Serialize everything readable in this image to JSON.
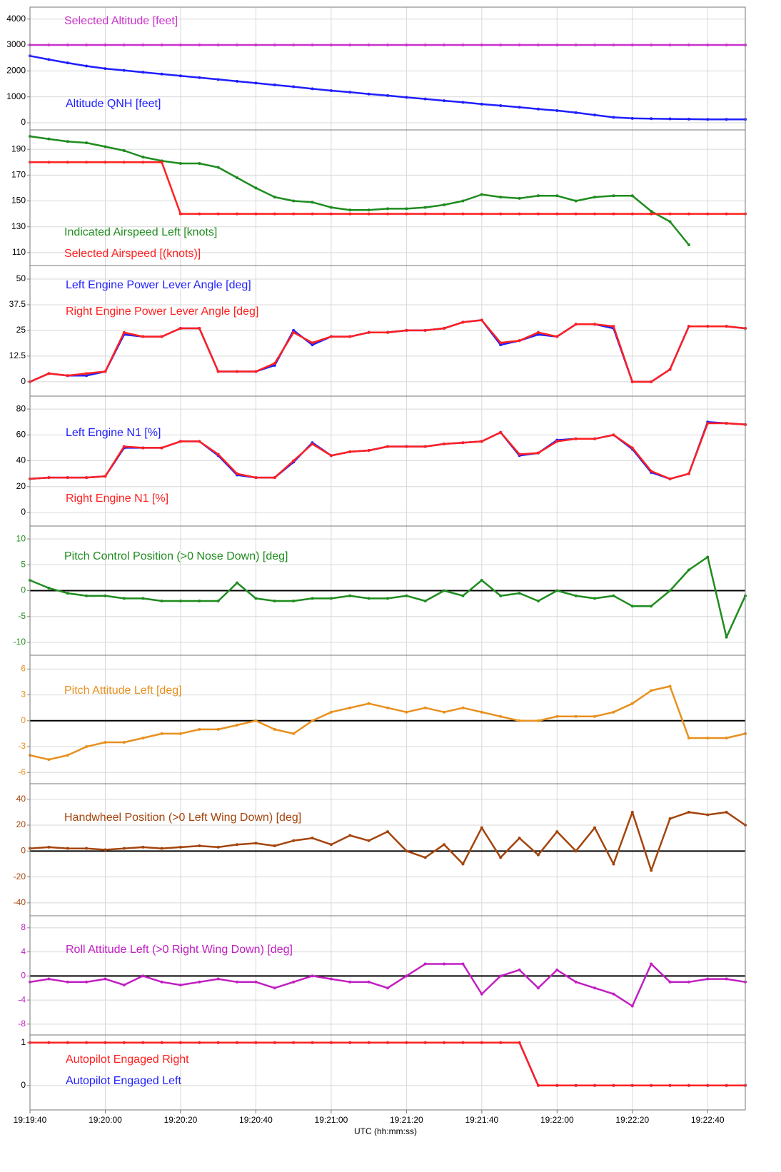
{
  "x_label": "UTC (hh:mm:ss)",
  "xlim": [
    "19:19:40",
    "19:22:50"
  ],
  "xticks": [
    "19:19:40",
    "19:20:00",
    "19:20:20",
    "19:20:40",
    "19:21:00",
    "19:21:20",
    "19:21:40",
    "19:22:00",
    "19:22:20",
    "19:22:40"
  ],
  "x": [
    "19:19:40",
    "19:19:45",
    "19:19:50",
    "19:19:55",
    "19:20:00",
    "19:20:05",
    "19:20:10",
    "19:20:15",
    "19:20:20",
    "19:20:25",
    "19:20:30",
    "19:20:35",
    "19:20:40",
    "19:20:45",
    "19:20:50",
    "19:20:55",
    "19:21:00",
    "19:21:05",
    "19:21:10",
    "19:21:15",
    "19:21:20",
    "19:21:25",
    "19:21:30",
    "19:21:35",
    "19:21:40",
    "19:21:45",
    "19:21:50",
    "19:21:55",
    "19:22:00",
    "19:22:05",
    "19:22:10",
    "19:22:15",
    "19:22:20",
    "19:22:25",
    "19:22:30",
    "19:22:35",
    "19:22:40",
    "19:22:45",
    "19:22:50"
  ],
  "chart_data": [
    {
      "type": "line",
      "ylim": [
        -275,
        4460
      ],
      "yticks": [
        0,
        1000,
        2000,
        3000,
        4000
      ],
      "tick_color": "#000000",
      "grid": true,
      "zero_line": false,
      "series": [
        {
          "name": "Selected Altitude [feet]",
          "color": "#cc33cc",
          "values": [
            3000,
            3000,
            3000,
            3000,
            3000,
            3000,
            3000,
            3000,
            3000,
            3000,
            3000,
            3000,
            3000,
            3000,
            3000,
            3000,
            3000,
            3000,
            3000,
            3000,
            3000,
            3000,
            3000,
            3000,
            3000,
            3000,
            3000,
            3000,
            3000,
            3000,
            3000,
            3000,
            3000,
            3000,
            3000,
            3000,
            3000,
            3000,
            3000
          ]
        },
        {
          "name": "Altitude QNH [feet]",
          "color": "#1f1fff",
          "values": [
            2580,
            2440,
            2310,
            2190,
            2090,
            2020,
            1950,
            1880,
            1810,
            1740,
            1670,
            1600,
            1530,
            1460,
            1390,
            1310,
            1240,
            1180,
            1110,
            1050,
            980,
            920,
            850,
            790,
            720,
            660,
            600,
            530,
            470,
            390,
            300,
            210,
            170,
            160,
            150,
            140,
            130,
            130,
            130
          ]
        }
      ]
    },
    {
      "type": "line",
      "ylim": [
        100,
        205
      ],
      "yticks": [
        110,
        130,
        150,
        170,
        190
      ],
      "tick_color": "#000000",
      "grid": true,
      "zero_line": false,
      "series": [
        {
          "name": "Indicated Airspeed Left [knots]",
          "color": "#1e8c1e",
          "values": [
            200,
            198,
            196,
            195,
            192,
            189,
            184,
            181,
            179,
            179,
            176,
            168,
            160,
            153,
            150,
            149,
            145,
            143,
            143,
            144,
            144,
            145,
            147,
            150,
            155,
            153,
            152,
            154,
            154,
            150,
            153,
            154,
            154,
            142,
            134,
            116,
            null,
            null,
            null
          ]
        },
        {
          "name": "Selected Airspeed [(knots)]",
          "color": "#ff2020",
          "values": [
            180,
            180,
            180,
            180,
            180,
            180,
            180,
            180,
            140,
            140,
            140,
            140,
            140,
            140,
            140,
            140,
            140,
            140,
            140,
            140,
            140,
            140,
            140,
            140,
            140,
            140,
            140,
            140,
            140,
            140,
            140,
            140,
            140,
            140,
            140,
            140,
            140,
            140,
            140
          ]
        }
      ]
    },
    {
      "type": "line",
      "ylim": [
        -7,
        56.6
      ],
      "yticks": [
        0,
        12.5,
        25,
        37.5,
        50
      ],
      "tick_color": "#000000",
      "grid": true,
      "zero_line": false,
      "series": [
        {
          "name": "Left Engine Power Lever Angle [deg]",
          "color": "#1f1fff",
          "values": [
            0,
            4,
            3,
            3,
            5,
            23,
            22,
            22,
            26,
            26,
            5,
            5,
            5,
            8,
            25,
            18,
            22,
            22,
            24,
            24,
            25,
            25,
            26,
            29,
            30,
            18,
            20,
            23,
            22,
            28,
            28,
            26,
            0,
            0,
            6,
            27,
            27,
            27,
            26
          ]
        },
        {
          "name": "Right Engine Power Lever Angle  [deg]",
          "color": "#ff2020",
          "values": [
            0,
            4,
            3,
            4,
            5,
            24,
            22,
            22,
            26,
            26,
            5,
            5,
            5,
            9,
            24,
            19,
            22,
            22,
            24,
            24,
            25,
            25,
            26,
            29,
            30,
            19,
            20,
            24,
            22,
            28,
            28,
            27,
            0,
            0,
            6,
            27,
            27,
            27,
            26
          ]
        }
      ]
    },
    {
      "type": "line",
      "ylim": [
        -10.5,
        90
      ],
      "yticks": [
        0,
        20,
        40,
        60,
        80
      ],
      "tick_color": "#000000",
      "grid": true,
      "zero_line": false,
      "series": [
        {
          "name": "Left Engine N1 [%]",
          "color": "#1f1fff",
          "values": [
            26,
            27,
            27,
            27,
            28,
            50,
            50,
            50,
            55,
            55,
            44,
            29,
            27,
            27,
            39,
            54,
            44,
            47,
            48,
            51,
            51,
            51,
            53,
            54,
            55,
            62,
            44,
            46,
            56,
            57,
            57,
            60,
            49,
            31,
            26,
            30,
            70,
            69,
            68
          ]
        },
        {
          "name": "Right Engine N1 [%]",
          "color": "#ff2020",
          "values": [
            26,
            27,
            27,
            27,
            28,
            51,
            50,
            50,
            55,
            55,
            45,
            30,
            27,
            27,
            40,
            53,
            44,
            47,
            48,
            51,
            51,
            51,
            53,
            54,
            55,
            62,
            45,
            46,
            55,
            57,
            57,
            60,
            50,
            32,
            26,
            30,
            69,
            69,
            68
          ]
        }
      ]
    },
    {
      "type": "line",
      "ylim": [
        -12.5,
        12.5
      ],
      "yticks": [
        -10,
        -5,
        0,
        5,
        10
      ],
      "tick_color": "#1e8c1e",
      "grid": true,
      "zero_line": true,
      "series": [
        {
          "name": "Pitch Control Position (>0 Nose Down) [deg]",
          "color": "#1e8c1e",
          "values": [
            2,
            0.5,
            -0.5,
            -1,
            -1,
            -1.5,
            -1.5,
            -2,
            -2,
            -2,
            -2,
            1.5,
            -1.5,
            -2,
            -2,
            -1.5,
            -1.5,
            -1,
            -1.5,
            -1.5,
            -1,
            -2,
            0,
            -1,
            2,
            -1,
            -0.5,
            -2,
            0,
            -1,
            -1.5,
            -1,
            -3,
            -3,
            0,
            4,
            6.5,
            -9,
            -1
          ]
        }
      ]
    },
    {
      "type": "line",
      "ylim": [
        -7.3,
        7.6
      ],
      "yticks": [
        -6,
        -3,
        0,
        3,
        6
      ],
      "tick_color": "#e8901e",
      "grid": true,
      "zero_line": true,
      "series": [
        {
          "name": "Pitch Attitude Left [deg]",
          "color": "#e8901e",
          "values": [
            -4,
            -4.5,
            -4,
            -3,
            -2.5,
            -2.5,
            -2,
            -1.5,
            -1.5,
            -1,
            -1,
            -0.5,
            0,
            -1,
            -1.5,
            0,
            1,
            1.5,
            2,
            1.5,
            1,
            1.5,
            1,
            1.5,
            1,
            0.5,
            0,
            0,
            0.5,
            0.5,
            0.5,
            1,
            2,
            3.5,
            4,
            -2,
            -2,
            -2,
            -1.5
          ]
        }
      ]
    },
    {
      "type": "line",
      "ylim": [
        -50,
        52
      ],
      "yticks": [
        -40,
        -20,
        0,
        20,
        40
      ],
      "tick_color": "#a4440c",
      "grid": true,
      "zero_line": true,
      "series": [
        {
          "name": "Handwheel Position (>0 Left Wing Down) [deg]",
          "color": "#a4440c",
          "values": [
            2,
            3,
            2,
            2,
            1,
            2,
            3,
            2,
            3,
            4,
            3,
            5,
            6,
            4,
            8,
            10,
            5,
            12,
            8,
            15,
            0,
            -5,
            5,
            -10,
            18,
            -5,
            10,
            -3,
            15,
            0,
            18,
            -10,
            30,
            -15,
            25,
            30,
            28,
            30,
            20
          ]
        }
      ]
    },
    {
      "type": "line",
      "ylim": [
        -9.8,
        10
      ],
      "yticks": [
        -8,
        -4,
        0,
        4,
        8
      ],
      "tick_color": "#c21fc2",
      "grid": true,
      "zero_line": true,
      "series": [
        {
          "name": "Roll Attitude Left (>0 Right Wing Down) [deg]",
          "color": "#c21fc2",
          "values": [
            -1,
            -0.5,
            -1,
            -1,
            -0.5,
            -1.5,
            0,
            -1,
            -1.5,
            -1,
            -0.5,
            -1,
            -1,
            -2,
            -1,
            0,
            -0.5,
            -1,
            -1,
            -2,
            0,
            2,
            2,
            2,
            -3,
            0,
            1,
            -2,
            1,
            -1,
            -2,
            -3,
            -5,
            2,
            -1,
            -1,
            -0.5,
            -0.5,
            -1
          ]
        }
      ]
    },
    {
      "type": "line",
      "ylim": [
        -0.57,
        1.18
      ],
      "yticks": [
        0,
        1
      ],
      "tick_color": "#000000",
      "grid": true,
      "zero_line": false,
      "series": [
        {
          "name": "Autopilot Engaged Left",
          "color": "#1f1fff",
          "values": [
            1,
            1,
            1,
            1,
            1,
            1,
            1,
            1,
            1,
            1,
            1,
            1,
            1,
            1,
            1,
            1,
            1,
            1,
            1,
            1,
            1,
            1,
            1,
            1,
            1,
            1,
            1,
            0,
            0,
            0,
            0,
            0,
            0,
            0,
            0,
            0,
            0,
            0,
            0
          ]
        },
        {
          "name": "Autopilot Engaged Right",
          "color": "#ff2020",
          "values": [
            1,
            1,
            1,
            1,
            1,
            1,
            1,
            1,
            1,
            1,
            1,
            1,
            1,
            1,
            1,
            1,
            1,
            1,
            1,
            1,
            1,
            1,
            1,
            1,
            1,
            1,
            1,
            0,
            0,
            0,
            0,
            0,
            0,
            0,
            0,
            0,
            0,
            0,
            0
          ]
        }
      ]
    }
  ]
}
